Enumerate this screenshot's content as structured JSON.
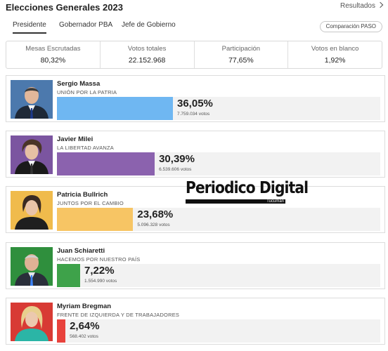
{
  "header": {
    "title": "Elecciones Generales 2023",
    "results_link": "Resultados"
  },
  "tabs": [
    {
      "label": "Presidente",
      "active": true
    },
    {
      "label": "Gobernador PBA",
      "active": false
    },
    {
      "label": "Jefe de Gobierno",
      "active": false
    }
  ],
  "paso_button": "Comparación PASO",
  "stats": [
    {
      "label": "Mesas Escrutadas",
      "value": "80,32%"
    },
    {
      "label": "Votos totales",
      "value": "22.152.968"
    },
    {
      "label": "Participación",
      "value": "77,65%"
    },
    {
      "label": "Votos en blanco",
      "value": "1,92%"
    }
  ],
  "candidates": [
    {
      "name": "Sergio Massa",
      "party": "UNIÓN POR LA PATRIA",
      "pct_label": "36,05%",
      "pct": 36.05,
      "votes": "7.759.034 votos",
      "color": "#6fb7f2",
      "photo_bg": "#3d6ea7"
    },
    {
      "name": "Javier Milei",
      "party": "LA LIBERTAD AVANZA",
      "pct_label": "30,39%",
      "pct": 30.39,
      "votes": "6.539.606 votos",
      "color": "#8b62ae",
      "photo_bg": "#7b55a0"
    },
    {
      "name": "Patricia Bullrich",
      "party": "JUNTOS POR EL CAMBIO",
      "pct_label": "23,68%",
      "pct": 23.68,
      "votes": "5.096.328 votos",
      "color": "#f7c564",
      "photo_bg": "#f0bb4c"
    },
    {
      "name": "Juan Schiaretti",
      "party": "HACEMOS POR NUESTRO PAÍS",
      "pct_label": "7,22%",
      "pct": 7.22,
      "votes": "1.554.990 votos",
      "color": "#3ea24a",
      "photo_bg": "#2f8f3d"
    },
    {
      "name": "Myriam Bregman",
      "party": "FRENTE DE IZQUIERDA Y DE TRABAJADORES",
      "pct_label": "2,64%",
      "pct": 2.64,
      "votes": "568.402 votos",
      "color": "#e8423c",
      "photo_bg": "#d83a34"
    }
  ],
  "watermark": {
    "title": "Periodico Digital",
    "subtitle": "Tucumán"
  }
}
